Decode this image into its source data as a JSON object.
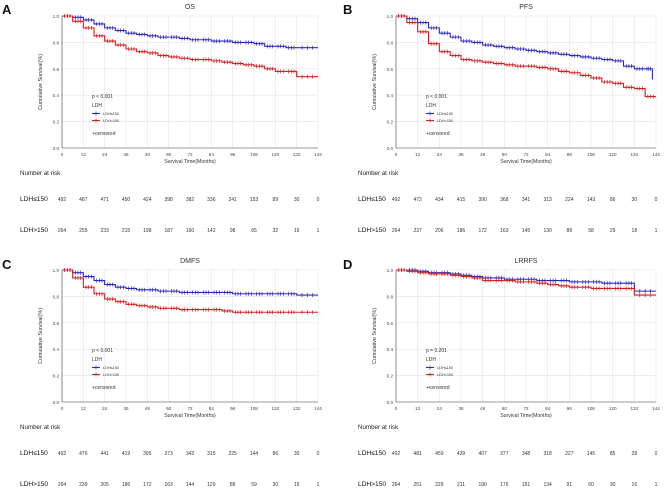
{
  "chart_data": [
    {
      "panel_label": "A",
      "type": "line",
      "subtype": "kaplan-meier",
      "title": "OS",
      "xlabel": "Survival Time(Months)",
      "ylabel": "Cumulative Survival(%)",
      "xlim": [
        0,
        144
      ],
      "ylim": [
        0,
        1.0
      ],
      "xticks": [
        "0",
        "12",
        "24",
        "36",
        "48",
        "60",
        "72",
        "84",
        "96",
        "108",
        "120",
        "132",
        "144"
      ],
      "yticks": [
        "0.0",
        "0.2",
        "0.4",
        "0.6",
        "0.8",
        "1.0"
      ],
      "pvalue": "p < 0.001",
      "legend_title": "LDH",
      "legend_entries": [
        "LDH≤150",
        "LDH>150"
      ],
      "censored_label": "+censored",
      "series": [
        {
          "name": "LDH≤150",
          "color": "#2a2ab8",
          "x": [
            0,
            6,
            12,
            18,
            24,
            30,
            36,
            42,
            48,
            54,
            60,
            66,
            72,
            78,
            84,
            90,
            96,
            102,
            108,
            114,
            120,
            126,
            132,
            144
          ],
          "y": [
            1.0,
            0.99,
            0.97,
            0.94,
            0.91,
            0.89,
            0.87,
            0.86,
            0.85,
            0.84,
            0.84,
            0.83,
            0.82,
            0.82,
            0.81,
            0.81,
            0.8,
            0.8,
            0.79,
            0.77,
            0.77,
            0.76,
            0.76,
            0.76
          ]
        },
        {
          "name": "LDH>150",
          "color": "#cc2222",
          "x": [
            0,
            6,
            12,
            18,
            24,
            30,
            36,
            42,
            48,
            54,
            60,
            66,
            72,
            78,
            84,
            90,
            96,
            102,
            108,
            114,
            120,
            126,
            132,
            144
          ],
          "y": [
            1.0,
            0.96,
            0.91,
            0.85,
            0.81,
            0.78,
            0.75,
            0.73,
            0.72,
            0.7,
            0.69,
            0.68,
            0.67,
            0.67,
            0.66,
            0.65,
            0.64,
            0.63,
            0.62,
            0.6,
            0.58,
            0.58,
            0.54,
            0.54
          ]
        }
      ],
      "risk_table": {
        "title": "Number at risk",
        "rows": [
          {
            "label": "LDH≤150",
            "values": [
              "492",
              "487",
              "471",
              "450",
              "424",
              "398",
              "382",
              "336",
              "241",
              "153",
              "89",
              "30",
              "0"
            ]
          },
          {
            "label": "LDH>150",
            "values": [
              "264",
              "255",
              "233",
              "215",
              "198",
              "187",
              "160",
              "142",
              "98",
              "65",
              "32",
              "19",
              "1"
            ]
          }
        ]
      }
    },
    {
      "panel_label": "B",
      "type": "line",
      "subtype": "kaplan-meier",
      "title": "PFS",
      "xlabel": "Survival Time(Months)",
      "ylabel": "Cumulative Survival(%)",
      "xlim": [
        0,
        144
      ],
      "ylim": [
        0,
        1.0
      ],
      "xticks": [
        "0",
        "12",
        "24",
        "36",
        "48",
        "60",
        "72",
        "84",
        "96",
        "108",
        "120",
        "132",
        "144"
      ],
      "yticks": [
        "0.0",
        "0.2",
        "0.4",
        "0.6",
        "0.8",
        "1.0"
      ],
      "pvalue": "p < 0.001",
      "legend_title": "LDH",
      "legend_entries": [
        "LDH≤150",
        "LDH>150"
      ],
      "censored_label": "+censored",
      "series": [
        {
          "name": "LDH≤150",
          "color": "#2a2ab8",
          "x": [
            0,
            6,
            12,
            18,
            24,
            30,
            36,
            42,
            48,
            54,
            60,
            66,
            72,
            78,
            84,
            90,
            96,
            102,
            108,
            114,
            120,
            126,
            132,
            138,
            142
          ],
          "y": [
            1.0,
            0.98,
            0.95,
            0.91,
            0.87,
            0.84,
            0.81,
            0.8,
            0.78,
            0.77,
            0.76,
            0.75,
            0.74,
            0.73,
            0.72,
            0.71,
            0.7,
            0.69,
            0.68,
            0.67,
            0.66,
            0.62,
            0.6,
            0.6,
            0.52
          ]
        },
        {
          "name": "LDH>150",
          "color": "#cc2222",
          "x": [
            0,
            6,
            12,
            18,
            24,
            30,
            36,
            42,
            48,
            54,
            60,
            66,
            72,
            78,
            84,
            90,
            96,
            102,
            108,
            114,
            120,
            126,
            132,
            138,
            144
          ],
          "y": [
            1.0,
            0.95,
            0.88,
            0.79,
            0.73,
            0.7,
            0.67,
            0.66,
            0.65,
            0.64,
            0.63,
            0.62,
            0.62,
            0.61,
            0.6,
            0.58,
            0.57,
            0.55,
            0.53,
            0.5,
            0.49,
            0.46,
            0.45,
            0.39,
            0.39
          ]
        }
      ],
      "risk_table": {
        "title": "Number at risk",
        "rows": [
          {
            "label": "LDH≤150",
            "values": [
              "492",
              "472",
              "434",
              "415",
              "390",
              "368",
              "341",
              "313",
              "224",
              "143",
              "86",
              "30",
              "0"
            ]
          },
          {
            "label": "LDH>150",
            "values": [
              "264",
              "237",
              "206",
              "186",
              "172",
              "163",
              "145",
              "130",
              "88",
              "58",
              "29",
              "18",
              "1"
            ]
          }
        ]
      }
    },
    {
      "panel_label": "C",
      "type": "line",
      "subtype": "kaplan-meier",
      "title": "DMFS",
      "xlabel": "Survival Time(Months)",
      "ylabel": "Cumulative Survival(%)",
      "xlim": [
        0,
        144
      ],
      "ylim": [
        0,
        1.0
      ],
      "xticks": [
        "0",
        "12",
        "24",
        "36",
        "48",
        "60",
        "72",
        "84",
        "96",
        "108",
        "120",
        "132",
        "144"
      ],
      "yticks": [
        "0.0",
        "0.2",
        "0.4",
        "0.6",
        "0.8",
        "1.0"
      ],
      "pvalue": "p < 0.001",
      "legend_title": "LDH",
      "legend_entries": [
        "LDH≤150",
        "LDH>150"
      ],
      "censored_label": "+censored",
      "series": [
        {
          "name": "LDH≤150",
          "color": "#2a2ab8",
          "x": [
            0,
            6,
            12,
            18,
            24,
            30,
            36,
            42,
            48,
            54,
            60,
            66,
            72,
            78,
            84,
            90,
            96,
            102,
            108,
            114,
            120,
            126,
            132,
            144
          ],
          "y": [
            1.0,
            0.98,
            0.95,
            0.92,
            0.89,
            0.87,
            0.86,
            0.85,
            0.85,
            0.84,
            0.84,
            0.83,
            0.83,
            0.83,
            0.83,
            0.83,
            0.82,
            0.82,
            0.82,
            0.82,
            0.82,
            0.82,
            0.81,
            0.81
          ]
        },
        {
          "name": "LDH>150",
          "color": "#cc2222",
          "x": [
            0,
            6,
            12,
            18,
            24,
            30,
            36,
            42,
            48,
            54,
            60,
            66,
            72,
            78,
            84,
            90,
            96,
            102,
            108,
            114,
            120,
            126,
            132,
            144
          ],
          "y": [
            1.0,
            0.94,
            0.87,
            0.82,
            0.78,
            0.76,
            0.74,
            0.73,
            0.72,
            0.71,
            0.71,
            0.7,
            0.7,
            0.7,
            0.7,
            0.69,
            0.68,
            0.68,
            0.68,
            0.68,
            0.68,
            0.68,
            0.68,
            0.68
          ]
        }
      ],
      "risk_table": {
        "title": "Number at risk",
        "rows": [
          {
            "label": "LDH≤150",
            "values": [
              "492",
              "476",
              "441",
              "419",
              "395",
              "373",
              "343",
              "315",
              "225",
              "144",
              "86",
              "30",
              "0"
            ]
          },
          {
            "label": "LDH>150",
            "values": [
              "264",
              "239",
              "205",
              "186",
              "172",
              "163",
              "144",
              "129",
              "89",
              "59",
              "30",
              "19",
              "1"
            ]
          }
        ]
      }
    },
    {
      "panel_label": "D",
      "type": "line",
      "subtype": "kaplan-meier",
      "title": "LRRFS",
      "xlabel": "Survival Time(Months)",
      "ylabel": "Cumulative Survival(%)",
      "xlim": [
        0,
        144
      ],
      "ylim": [
        0,
        1.0
      ],
      "xticks": [
        "0",
        "12",
        "24",
        "36",
        "48",
        "60",
        "72",
        "84",
        "96",
        "108",
        "120",
        "132",
        "144"
      ],
      "yticks": [
        "0.0",
        "0.2",
        "0.4",
        "0.6",
        "0.8",
        "1.0"
      ],
      "pvalue": "p = 0.201",
      "legend_title": "LDH",
      "legend_entries": [
        "LDH≤150",
        "LDH>150"
      ],
      "censored_label": "+censored",
      "series": [
        {
          "name": "LDH≤150",
          "color": "#2a2ab8",
          "x": [
            0,
            6,
            12,
            18,
            24,
            30,
            36,
            42,
            48,
            54,
            60,
            66,
            72,
            78,
            84,
            90,
            96,
            102,
            108,
            114,
            120,
            126,
            132,
            144
          ],
          "y": [
            1.0,
            1.0,
            0.99,
            0.98,
            0.98,
            0.97,
            0.96,
            0.95,
            0.94,
            0.94,
            0.93,
            0.93,
            0.93,
            0.92,
            0.92,
            0.92,
            0.91,
            0.91,
            0.91,
            0.9,
            0.9,
            0.9,
            0.84,
            0.84
          ]
        },
        {
          "name": "LDH>150",
          "color": "#cc2222",
          "x": [
            0,
            6,
            12,
            18,
            24,
            30,
            36,
            42,
            48,
            54,
            60,
            66,
            72,
            78,
            84,
            90,
            96,
            102,
            108,
            114,
            120,
            126,
            132,
            144
          ],
          "y": [
            1.0,
            0.99,
            0.98,
            0.97,
            0.97,
            0.96,
            0.95,
            0.94,
            0.92,
            0.92,
            0.92,
            0.91,
            0.91,
            0.9,
            0.89,
            0.88,
            0.87,
            0.87,
            0.86,
            0.86,
            0.86,
            0.86,
            0.81,
            0.81
          ]
        }
      ],
      "risk_table": {
        "title": "Number at risk",
        "rows": [
          {
            "label": "LDH≤150",
            "values": [
              "492",
              "481",
              "459",
              "439",
              "407",
              "377",
              "348",
              "318",
              "227",
              "145",
              "85",
              "28",
              "0"
            ]
          },
          {
            "label": "LDH>150",
            "values": [
              "264",
              "251",
              "229",
              "211",
              "190",
              "176",
              "151",
              "134",
              "91",
              "60",
              "30",
              "16",
              "1"
            ]
          }
        ]
      }
    }
  ],
  "colors": {
    "series_1": "#2a2ab8",
    "series_2": "#cc2222",
    "grid": "#e4e4e4",
    "axis": "#444444"
  }
}
